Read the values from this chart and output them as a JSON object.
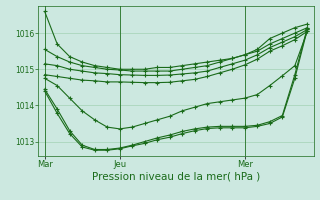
{
  "bg_color": "#cce8e0",
  "line_color": "#1a6b1a",
  "grid_color": "#99ccaa",
  "xlabel": "Pression niveau de la mer( hPa )",
  "xlabel_fontsize": 7.5,
  "ylim": [
    1012.6,
    1016.75
  ],
  "yticks": [
    1013,
    1014,
    1015,
    1016
  ],
  "xtick_labels": [
    "Mar",
    "Jeu",
    "Mer"
  ],
  "xtick_pos": [
    0,
    6,
    16
  ],
  "n_points": 22,
  "figsize": [
    3.2,
    2.0
  ],
  "dpi": 100,
  "series": [
    [
      1016.6,
      1015.7,
      1015.35,
      1015.2,
      1015.1,
      1015.05,
      1015.0,
      1015.0,
      1015.0,
      1015.05,
      1015.05,
      1015.1,
      1015.15,
      1015.2,
      1015.25,
      1015.3,
      1015.4,
      1015.55,
      1015.85,
      1016.0,
      1016.15,
      1016.25
    ],
    [
      1015.55,
      1015.35,
      1015.2,
      1015.1,
      1015.05,
      1015.0,
      1014.98,
      1014.95,
      1014.95,
      1014.95,
      1014.95,
      1015.0,
      1015.05,
      1015.1,
      1015.2,
      1015.3,
      1015.4,
      1015.5,
      1015.7,
      1015.85,
      1016.0,
      1016.15
    ],
    [
      1015.15,
      1015.1,
      1015.0,
      1014.95,
      1014.9,
      1014.88,
      1014.85,
      1014.84,
      1014.83,
      1014.83,
      1014.84,
      1014.87,
      1014.9,
      1014.95,
      1015.05,
      1015.15,
      1015.25,
      1015.4,
      1015.6,
      1015.75,
      1015.9,
      1016.1
    ],
    [
      1014.85,
      1014.8,
      1014.75,
      1014.7,
      1014.68,
      1014.65,
      1014.65,
      1014.64,
      1014.63,
      1014.63,
      1014.64,
      1014.68,
      1014.72,
      1014.8,
      1014.9,
      1015.0,
      1015.12,
      1015.28,
      1015.5,
      1015.65,
      1015.82,
      1016.05
    ],
    [
      1014.75,
      1014.55,
      1014.2,
      1013.85,
      1013.6,
      1013.4,
      1013.35,
      1013.4,
      1013.5,
      1013.6,
      1013.7,
      1013.85,
      1013.95,
      1014.05,
      1014.1,
      1014.15,
      1014.2,
      1014.3,
      1014.55,
      1014.82,
      1015.1,
      1016.05
    ],
    [
      1014.45,
      1013.9,
      1013.3,
      1012.9,
      1012.78,
      1012.78,
      1012.82,
      1012.9,
      1013.0,
      1013.1,
      1013.18,
      1013.28,
      1013.35,
      1013.4,
      1013.42,
      1013.42,
      1013.42,
      1013.45,
      1013.55,
      1013.72,
      1014.85,
      1016.15
    ],
    [
      1014.4,
      1013.78,
      1013.22,
      1012.85,
      1012.76,
      1012.76,
      1012.8,
      1012.88,
      1012.95,
      1013.05,
      1013.12,
      1013.22,
      1013.3,
      1013.36,
      1013.38,
      1013.38,
      1013.38,
      1013.42,
      1013.5,
      1013.68,
      1014.75,
      1016.1
    ]
  ]
}
